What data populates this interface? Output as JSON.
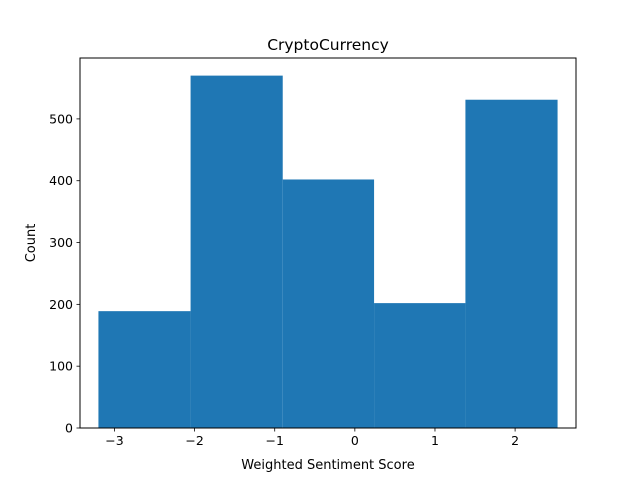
{
  "chart_data": {
    "type": "bar",
    "title": "CryptoCurrency",
    "xlabel": "Weighted Sentiment Score",
    "ylabel": "Count",
    "bins": [
      {
        "x0": -3.2,
        "x1": -2.05,
        "value": 189
      },
      {
        "x0": -2.05,
        "x1": -0.9,
        "value": 570
      },
      {
        "x0": -0.9,
        "x1": 0.24,
        "value": 402
      },
      {
        "x0": 0.24,
        "x1": 1.38,
        "value": 202
      },
      {
        "x0": 1.38,
        "x1": 2.53,
        "value": 531
      }
    ],
    "xlim": [
      -3.43,
      2.76
    ],
    "ylim": [
      0,
      598.5
    ],
    "xticks": [
      -3,
      -2,
      -1,
      0,
      1,
      2
    ],
    "xtick_labels": [
      "−3",
      "−2",
      "−1",
      "0",
      "1",
      "2"
    ],
    "yticks": [
      0,
      100,
      200,
      300,
      400,
      500
    ],
    "ytick_labels": [
      "0",
      "100",
      "200",
      "300",
      "400",
      "500"
    ],
    "bar_color": "#1f77b4",
    "grid": false,
    "legend": "none"
  }
}
